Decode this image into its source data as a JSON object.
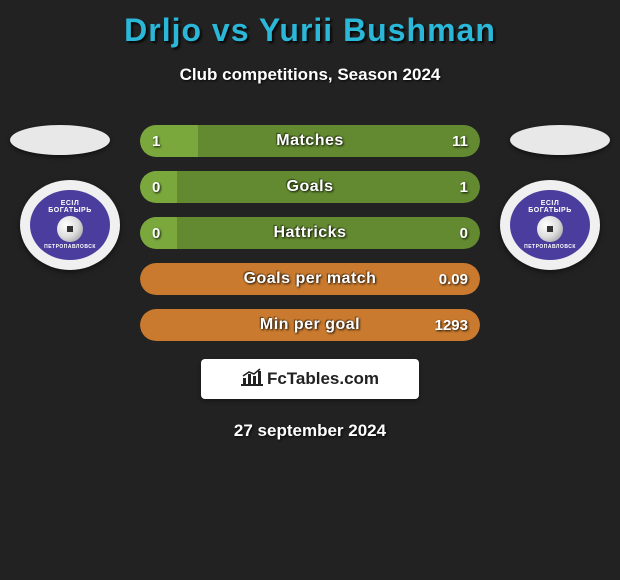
{
  "title": "Drljo vs Yurii Bushman",
  "subtitle": "Club competitions, Season 2024",
  "date": "27 september 2024",
  "branding_text": "FcTables.com",
  "colors": {
    "title": "#2ab7d8",
    "background": "#222222",
    "text": "#ffffff",
    "bar_fill": "#7aa83d",
    "bar_bg_green": "#638a30",
    "bar_bg_orange": "#c97a2e",
    "branding_bg": "#ffffff",
    "club_inner": "#4a3d9e"
  },
  "club": {
    "top_text": "ЕСІЛ",
    "mid_text": "БОГАТЫРЬ",
    "bottom_text": "ПЕТРОПАВЛОВСК"
  },
  "stats": [
    {
      "label": "Matches",
      "left_value": "1",
      "right_value": "11",
      "fill_pct": 17,
      "bg_color": "#638a30",
      "fill_color": "#7aa83d"
    },
    {
      "label": "Goals",
      "left_value": "0",
      "right_value": "1",
      "fill_pct": 11,
      "bg_color": "#638a30",
      "fill_color": "#7aa83d"
    },
    {
      "label": "Hattricks",
      "left_value": "0",
      "right_value": "0",
      "fill_pct": 11,
      "bg_color": "#638a30",
      "fill_color": "#7aa83d"
    },
    {
      "label": "Goals per match",
      "left_value": "",
      "right_value": "0.09",
      "fill_pct": 0,
      "bg_color": "#c97a2e",
      "fill_color": "#c97a2e"
    },
    {
      "label": "Min per goal",
      "left_value": "",
      "right_value": "1293",
      "fill_pct": 0,
      "bg_color": "#c97a2e",
      "fill_color": "#c97a2e"
    }
  ]
}
